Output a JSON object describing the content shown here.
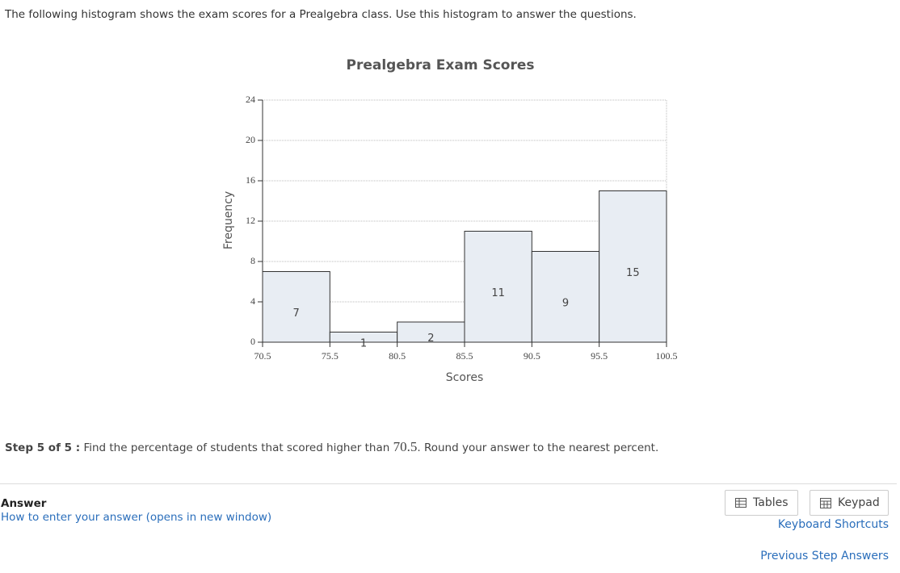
{
  "intro": "The following histogram shows the exam scores for a Prealgebra class. Use this histogram to answer the questions.",
  "chart_data": {
    "type": "histogram",
    "title": "Prealgebra Exam Scores",
    "x_label": "Scores",
    "y_label": "Frequency",
    "bins": [
      70.5,
      75.5,
      80.5,
      85.5,
      90.5,
      95.5,
      100.5
    ],
    "values": [
      7,
      1,
      2,
      11,
      9,
      15
    ],
    "color": "#e8edf3",
    "xlim": [
      70.5,
      100.5
    ],
    "xticks": [
      70.5,
      75.5,
      80.5,
      85.5,
      90.5,
      95.5,
      100.5
    ],
    "ylim": [
      0,
      24
    ],
    "yticks": [
      0,
      4,
      8,
      12,
      16,
      20,
      24
    ],
    "grid": true
  },
  "step": {
    "label": "Step 5 of 5 :",
    "text_before": "Find the percentage of students that scored higher than",
    "value": "70.5",
    "text_after": ". Round your answer to the nearest percent."
  },
  "answer": {
    "title": "Answer",
    "help_link": "How to enter your answer (opens in new window)"
  },
  "buttons": [
    "Tables",
    "Keypad"
  ],
  "links": [
    "Keyboard Shortcuts",
    "Previous Step Answers"
  ]
}
